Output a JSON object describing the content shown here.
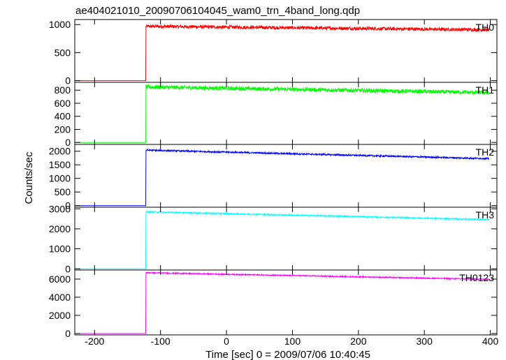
{
  "chart_data": {
    "type": "line",
    "title": "ae404021010_20090706104045_wam0_trn_4band_long.qdp",
    "xlabel": "Time [sec] 0 = 2009/07/06 10:40:45",
    "ylabel": "Counts/sec",
    "xlim": [
      -230,
      410
    ],
    "xticks": [
      -200,
      -100,
      0,
      100,
      200,
      300,
      400
    ],
    "grid": false,
    "panels": [
      {
        "name": "TH0",
        "color": "#ff0000",
        "ylim": [
          -30,
          1090
        ],
        "yticks": [
          0,
          500,
          1000
        ],
        "baseline": 0,
        "trigger_time": -122,
        "level_start": 970,
        "level_end": 905,
        "noise": 30
      },
      {
        "name": "TH1",
        "color": "#00ff00",
        "ylim": [
          -30,
          920
        ],
        "yticks": [
          0,
          200,
          400,
          600,
          800
        ],
        "baseline": 0,
        "trigger_time": -122,
        "level_start": 850,
        "level_end": 760,
        "noise": 30
      },
      {
        "name": "TH2",
        "color": "#0000ff",
        "ylim": [
          -60,
          2250
        ],
        "yticks": [
          0,
          500,
          1000,
          1500,
          2000
        ],
        "baseline": 0,
        "trigger_time": -122,
        "level_start": 2040,
        "level_end": 1720,
        "noise": 28
      },
      {
        "name": "TH3",
        "color": "#00ffff",
        "ylim": [
          -60,
          3080
        ],
        "yticks": [
          0,
          1000,
          2000,
          3000
        ],
        "baseline": 0,
        "trigger_time": -122,
        "level_start": 2850,
        "level_end": 2450,
        "noise": 32
      },
      {
        "name": "TH0123",
        "color": "#ff00ff",
        "ylim": [
          -150,
          7000
        ],
        "yticks": [
          0,
          2000,
          4000,
          6000
        ],
        "baseline": 0,
        "trigger_time": -122,
        "level_start": 6700,
        "level_end": 5950,
        "noise": 60
      }
    ]
  }
}
